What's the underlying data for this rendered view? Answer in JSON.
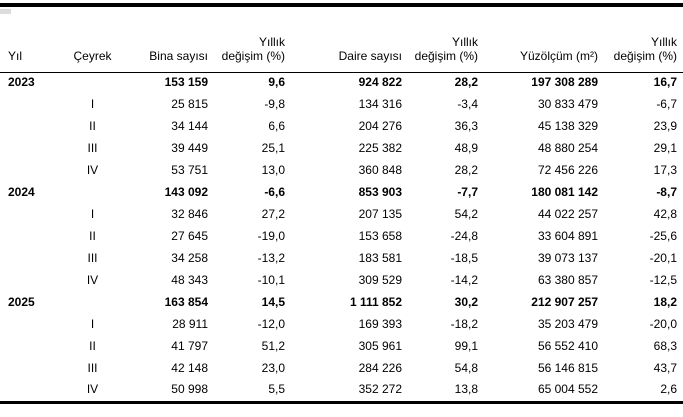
{
  "table": {
    "headers": [
      {
        "top": "",
        "bottom": "Yıl"
      },
      {
        "top": "",
        "bottom": "Çeyrek"
      },
      {
        "top": "",
        "bottom": "Bina sayısı"
      },
      {
        "top": "Yıllık",
        "bottom": "değişim (%)"
      },
      {
        "top": "",
        "bottom": "Daire sayısı"
      },
      {
        "top": "Yıllık",
        "bottom": "değişim (%)"
      },
      {
        "top": "",
        "bottom": "Yüzölçüm (m²)"
      },
      {
        "top": "Yıllık",
        "bottom": "değişim (%)"
      }
    ],
    "rows": [
      {
        "style": "year",
        "cells": [
          "2023",
          "",
          "153 159",
          "9,6",
          "924 822",
          "28,2",
          "197 308 289",
          "16,7"
        ]
      },
      {
        "style": "quarter",
        "cells": [
          "",
          "I",
          "25 815",
          "-9,8",
          "134 316",
          "-3,4",
          "30 833 479",
          "-6,7"
        ]
      },
      {
        "style": "quarter",
        "cells": [
          "",
          "II",
          "34 144",
          "6,6",
          "204 276",
          "36,3",
          "45 138 329",
          "23,9"
        ]
      },
      {
        "style": "quarter",
        "cells": [
          "",
          "III",
          "39 449",
          "25,1",
          "225 382",
          "48,9",
          "48 880 254",
          "29,1"
        ]
      },
      {
        "style": "quarter",
        "cells": [
          "",
          "IV",
          "53 751",
          "13,0",
          "360 848",
          "28,2",
          "72 456 226",
          "17,3"
        ]
      },
      {
        "style": "year",
        "cells": [
          "2024",
          "",
          "143 092",
          "-6,6",
          "853 903",
          "-7,7",
          "180 081 142",
          "-8,7"
        ]
      },
      {
        "style": "quarter",
        "cells": [
          "",
          "I",
          "32 846",
          "27,2",
          "207 135",
          "54,2",
          "44 022 257",
          "42,8"
        ]
      },
      {
        "style": "quarter",
        "cells": [
          "",
          "II",
          "27 645",
          "-19,0",
          "153 658",
          "-24,8",
          "33 604 891",
          "-25,6"
        ]
      },
      {
        "style": "quarter",
        "cells": [
          "",
          "III",
          "34 258",
          "-13,2",
          "183 581",
          "-18,5",
          "39 073 137",
          "-20,1"
        ]
      },
      {
        "style": "quarter",
        "cells": [
          "",
          "IV",
          "48 343",
          "-10,1",
          "309 529",
          "-14,2",
          "63 380 857",
          "-12,5"
        ]
      },
      {
        "style": "year",
        "cells": [
          "2025",
          "",
          "163 854",
          "14,5",
          "1 111 852",
          "30,2",
          "212 907 257",
          "18,2"
        ]
      },
      {
        "style": "quarter",
        "cells": [
          "",
          "I",
          "28 911",
          "-12,0",
          "169 393",
          "-18,2",
          "35 203 479",
          "-20,0"
        ]
      },
      {
        "style": "quarter",
        "cells": [
          "",
          "II",
          "41 797",
          "51,2",
          "305 961",
          "99,1",
          "56 552 410",
          "68,3"
        ]
      },
      {
        "style": "quarter",
        "cells": [
          "",
          "III",
          "42 148",
          "23,0",
          "284 226",
          "54,8",
          "56 146 815",
          "43,7"
        ]
      },
      {
        "style": "quarter",
        "cells": [
          "",
          "IV",
          "50 998",
          "5,5",
          "352 272",
          "13,8",
          "65 004 552",
          "2,6"
        ]
      }
    ]
  },
  "chart_data": {
    "type": "table",
    "columns": [
      "Yıl",
      "Çeyrek",
      "Bina sayısı",
      "Yıllık değişim (%)",
      "Daire sayısı",
      "Yıllık değişim (%)",
      "Yüzölçüm (m²)",
      "Yıllık değişim (%)"
    ],
    "rows": [
      [
        "2023",
        "",
        153159,
        9.6,
        924822,
        28.2,
        197308289,
        16.7
      ],
      [
        "",
        "I",
        25815,
        -9.8,
        134316,
        -3.4,
        30833479,
        -6.7
      ],
      [
        "",
        "II",
        34144,
        6.6,
        204276,
        36.3,
        45138329,
        23.9
      ],
      [
        "",
        "III",
        39449,
        25.1,
        225382,
        48.9,
        48880254,
        29.1
      ],
      [
        "",
        "IV",
        53751,
        13.0,
        360848,
        28.2,
        72456226,
        17.3
      ],
      [
        "2024",
        "",
        143092,
        -6.6,
        853903,
        -7.7,
        180081142,
        -8.7
      ],
      [
        "",
        "I",
        32846,
        27.2,
        207135,
        54.2,
        44022257,
        42.8
      ],
      [
        "",
        "II",
        27645,
        -19.0,
        153658,
        -24.8,
        33604891,
        -25.6
      ],
      [
        "",
        "III",
        34258,
        -13.2,
        183581,
        -18.5,
        39073137,
        -20.1
      ],
      [
        "",
        "IV",
        48343,
        -10.1,
        309529,
        -14.2,
        63380857,
        -12.5
      ],
      [
        "2025",
        "",
        163854,
        14.5,
        1111852,
        30.2,
        212907257,
        18.2
      ],
      [
        "",
        "I",
        28911,
        -12.0,
        169393,
        -18.2,
        35203479,
        -20.0
      ],
      [
        "",
        "II",
        41797,
        51.2,
        305961,
        99.1,
        56552410,
        68.3
      ],
      [
        "",
        "III",
        42148,
        23.0,
        284226,
        54.8,
        56146815,
        43.7
      ],
      [
        "",
        "IV",
        50998,
        5.5,
        352272,
        13.8,
        65004552,
        2.6
      ]
    ],
    "decimal_separator": ",",
    "thousands_separator": " ",
    "text_color": "#000000",
    "rule_color": "#000000"
  }
}
